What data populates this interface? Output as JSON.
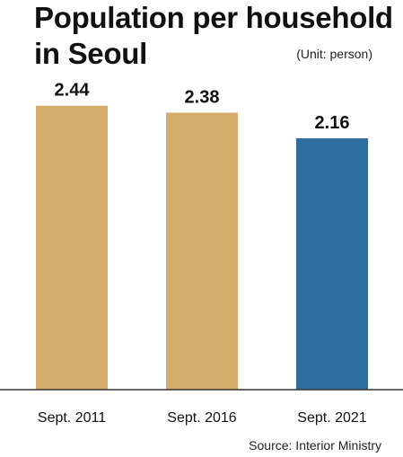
{
  "header": {
    "title_line1": "Population per household",
    "title_line2": "in Seoul",
    "unit": "(Unit: person)"
  },
  "footer": {
    "source": "Source: Interior Ministry"
  },
  "colors": {
    "highlight": "#2e6e9e",
    "default": "#d4ad6c",
    "axis": "#333333"
  },
  "chart_data": {
    "type": "bar",
    "categories": [
      "Sept. 2011",
      "Sept. 2016",
      "Sept. 2021"
    ],
    "values": [
      2.44,
      2.38,
      2.16
    ],
    "value_labels": [
      "2.44",
      "2.38",
      "2.16"
    ],
    "highlight_index": 2,
    "title": "Population per household in Seoul",
    "unit": "(Unit: person)",
    "ylim": [
      0,
      2.6
    ],
    "grid": false
  }
}
